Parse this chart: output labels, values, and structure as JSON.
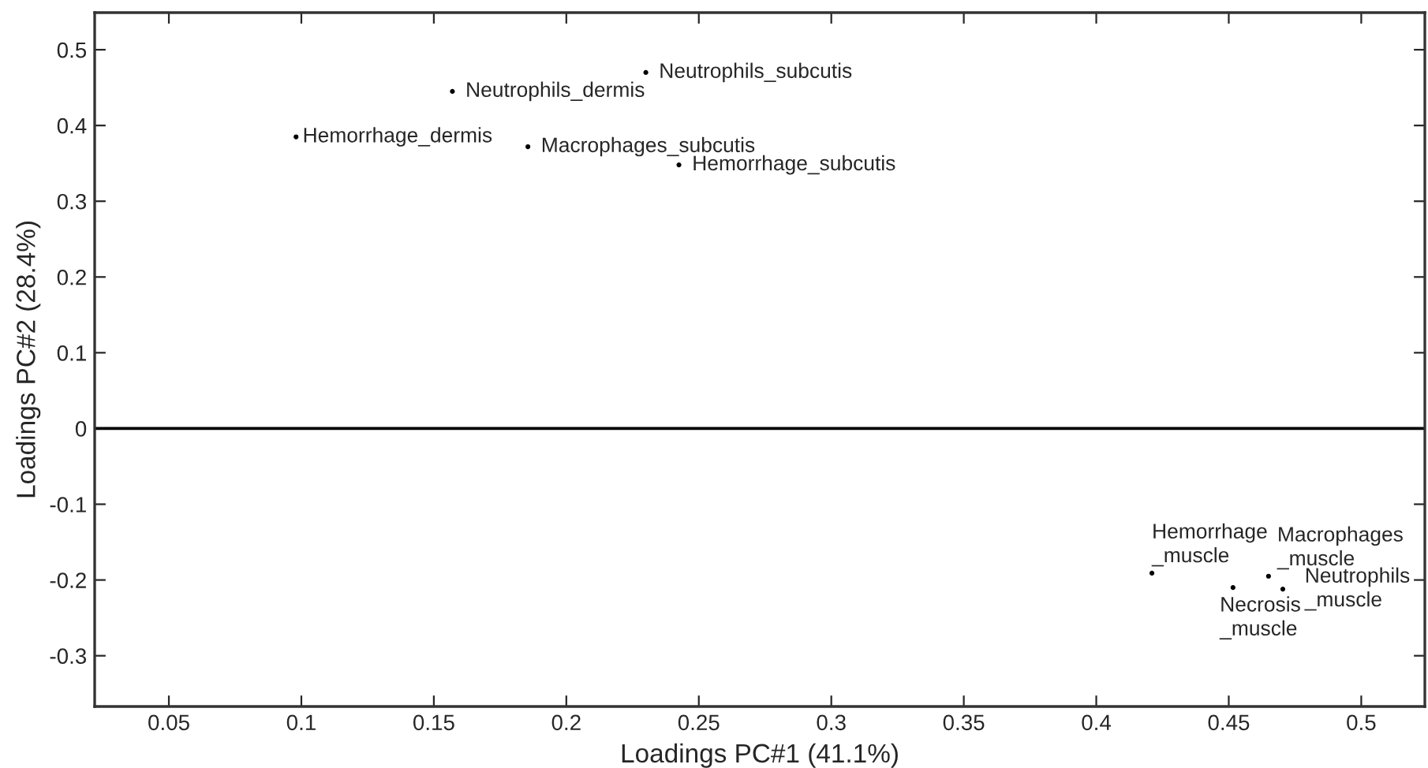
{
  "chart_data": {
    "type": "scatter",
    "xlabel": "Loadings PC#1 (41.1%)",
    "ylabel": "Loadings PC#2 (28.4%)",
    "x": [
      0.23,
      0.157,
      0.098,
      0.1855,
      0.2425,
      0.421,
      0.465,
      0.4516,
      0.4704
    ],
    "series": [
      {
        "color": "#000000",
        "values": [
          0.47,
          0.445,
          0.385,
          0.372,
          0.348,
          -0.191,
          -0.195,
          -0.21,
          -0.212
        ]
      }
    ],
    "annotations": [
      {
        "text": "Neutrophils_subcutis",
        "x": 0.23,
        "y": 0.47
      },
      {
        "text": "Neutrophils_dermis",
        "x": 0.157,
        "y": 0.445
      },
      {
        "text": "Hemorrhage_dermis",
        "x": 0.098,
        "y": 0.385
      },
      {
        "text": "Macrophages_subcutis",
        "x": 0.1855,
        "y": 0.372
      },
      {
        "text": "Hemorrhage_subcutis",
        "x": 0.2425,
        "y": 0.348
      },
      {
        "text": "Hemorrhage\n_muscle",
        "x": 0.421,
        "y": -0.191
      },
      {
        "text": "Macrophages\n_muscle",
        "x": 0.465,
        "y": -0.195
      },
      {
        "text": "Necrosis\n_muscle",
        "x": 0.4516,
        "y": -0.21
      },
      {
        "text": "Neutrophils\n_muscle",
        "x": 0.4704,
        "y": -0.212
      }
    ],
    "ref_lines": [
      {
        "axis": "y",
        "value": 0,
        "color": "#000000"
      }
    ],
    "xlim": [
      0.022,
      0.524
    ],
    "ylim": [
      -0.367,
      0.549
    ],
    "xticks": [
      0.05,
      0.1,
      0.15,
      0.2,
      0.25,
      0.3,
      0.35,
      0.4,
      0.45,
      0.5
    ],
    "yticks": [
      -0.3,
      -0.2,
      -0.1,
      0,
      0.1,
      0.2,
      0.3,
      0.4,
      0.5
    ],
    "marker": "circle",
    "grid": false,
    "legend": false
  }
}
